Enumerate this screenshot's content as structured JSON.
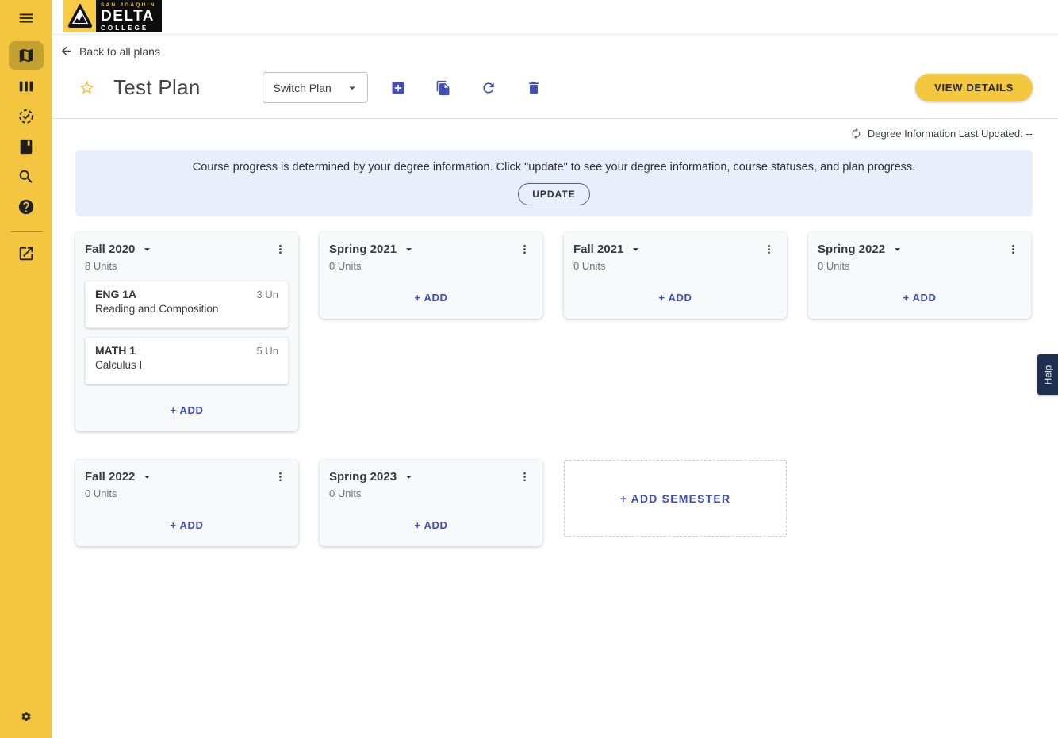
{
  "logo": {
    "top": "SAN JOAQUIN",
    "middle": "DELTA",
    "bottom": "COLLEGE"
  },
  "sidebar": {
    "icons": [
      "menu-icon",
      "map-icon",
      "columns-icon",
      "check-circle-icon",
      "book-icon",
      "search-icon",
      "help-icon",
      "external-link-icon",
      "gear-icon"
    ],
    "active_icon": "map-icon"
  },
  "header": {
    "back": "Back to all plans",
    "title": "Test Plan",
    "switch_plan": "Switch Plan",
    "view_details": "VIEW DETAILS"
  },
  "status_bar": {
    "last_updated": "Degree Information Last Updated: --"
  },
  "banner": {
    "message": "Course progress is determined by your degree information. Click \"update\" to see your degree information, course statuses, and plan progress.",
    "update": "UPDATE"
  },
  "plan": {
    "add_course_label": "+ ADD",
    "add_semester_label": "+ ADD SEMESTER",
    "semesters": [
      {
        "name": "Fall 2020",
        "units": "8 Units",
        "courses": [
          {
            "code": "ENG 1A",
            "units": "3 Un",
            "title": "Reading and Composition"
          },
          {
            "code": "MATH 1",
            "units": "5 Un",
            "title": "Calculus I"
          }
        ]
      },
      {
        "name": "Spring 2021",
        "units": "0 Units",
        "courses": []
      },
      {
        "name": "Fall 2021",
        "units": "0 Units",
        "courses": []
      },
      {
        "name": "Spring 2022",
        "units": "0 Units",
        "courses": []
      },
      {
        "name": "Fall 2022",
        "units": "0 Units",
        "courses": []
      },
      {
        "name": "Spring 2023",
        "units": "0 Units",
        "courses": []
      }
    ]
  },
  "help_tab": {
    "label": "Help"
  },
  "colors": {
    "brand_yellow": "#F4C63F",
    "sidebar_active": "#C3A032",
    "accent_indigo": "#4250B4",
    "banner_bg": "#E8EEFA",
    "help_navy": "#1E3050",
    "view_details_bg": "#F3C83F"
  }
}
